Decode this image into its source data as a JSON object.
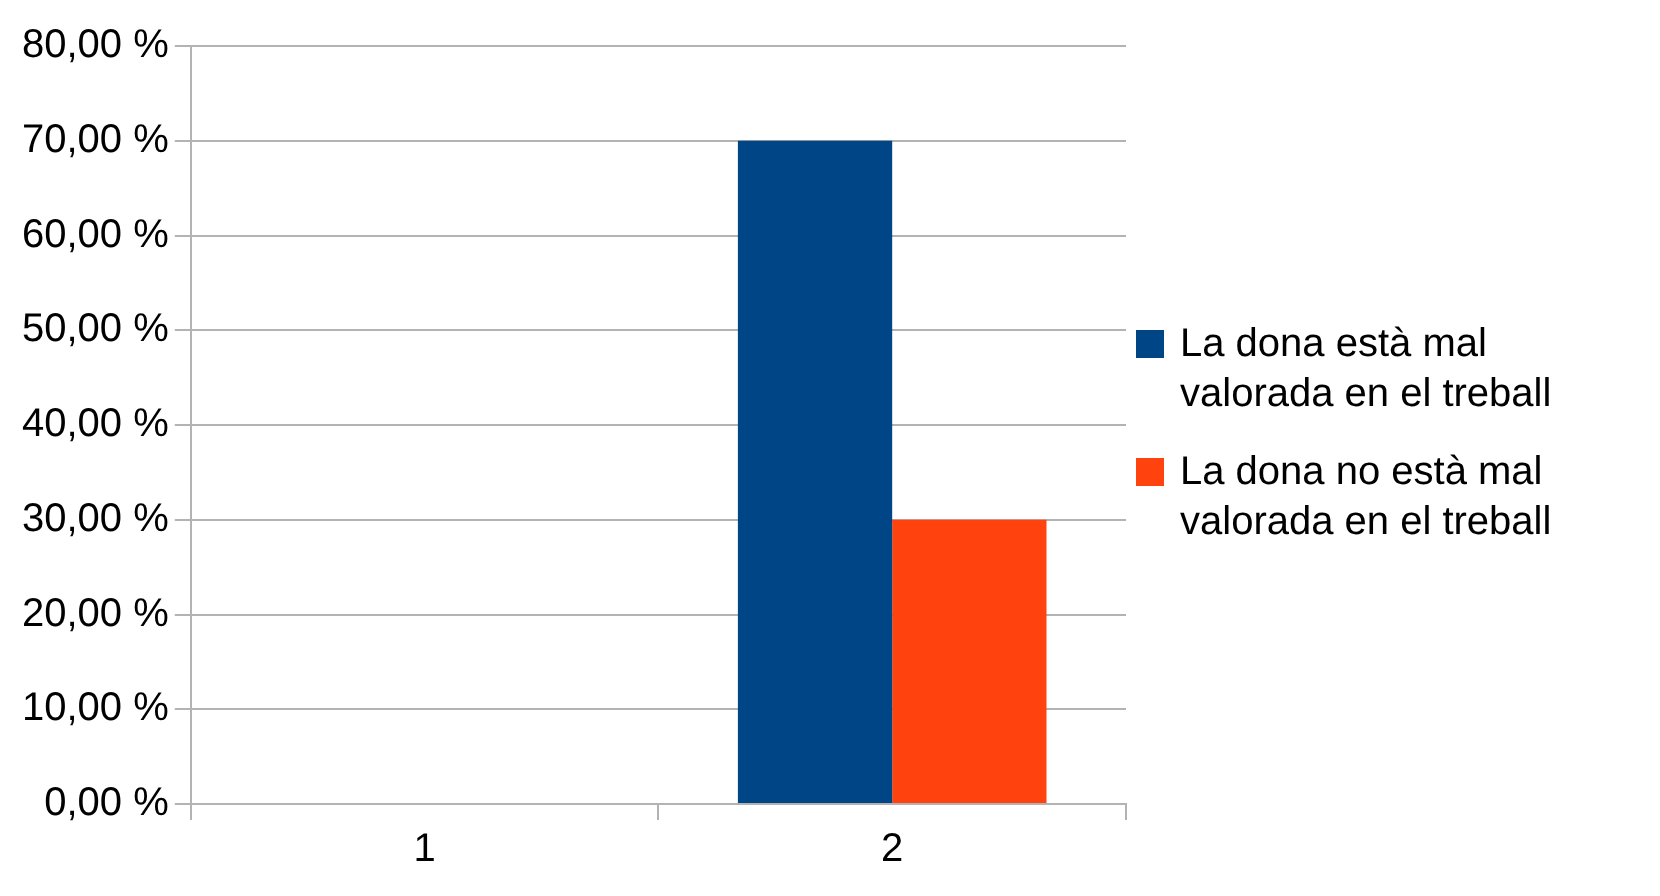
{
  "chart_data": {
    "type": "bar",
    "categories": [
      "1",
      "2"
    ],
    "series": [
      {
        "name": "La dona està mal valorada en el treball",
        "color": "#004586",
        "values": [
          0,
          70
        ]
      },
      {
        "name": "La dona no està mal valorada en el treball",
        "color": "#ff420e",
        "values": [
          0,
          30
        ]
      }
    ],
    "ylim": [
      0,
      80
    ],
    "yticks": [
      {
        "value": 0,
        "label": "0,00 %"
      },
      {
        "value": 10,
        "label": "10,00 %"
      },
      {
        "value": 20,
        "label": "20,00 %"
      },
      {
        "value": 30,
        "label": "30,00 %"
      },
      {
        "value": 40,
        "label": "40,00 %"
      },
      {
        "value": 50,
        "label": "50,00 %"
      },
      {
        "value": 60,
        "label": "60,00 %"
      },
      {
        "value": 70,
        "label": "70,00 %"
      },
      {
        "value": 80,
        "label": "80,00 %"
      }
    ],
    "grid": "y",
    "legend": "right"
  }
}
